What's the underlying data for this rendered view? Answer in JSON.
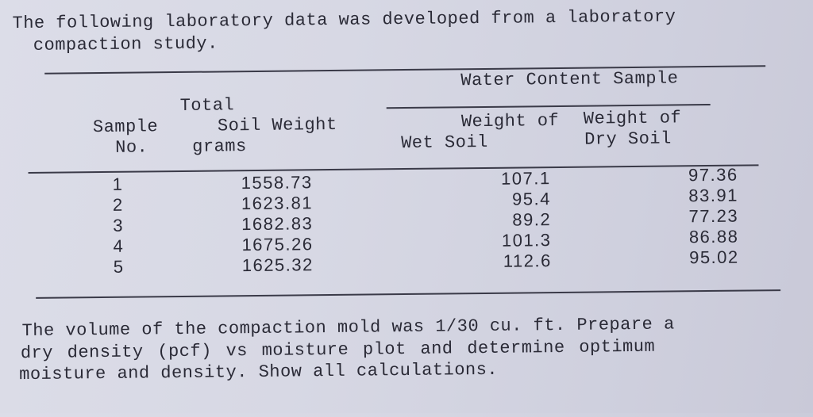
{
  "intro": {
    "line1": "The following laboratory data was developed from a laboratory",
    "line2": "compaction study."
  },
  "table": {
    "group_header": "Water Content Sample",
    "headers": {
      "sample": [
        "Sample",
        "No."
      ],
      "total": [
        "Total",
        "Soil Weight",
        "grams"
      ],
      "wet": [
        "Weight of",
        "Wet Soil"
      ],
      "dry": [
        "Weight of",
        "Dry Soil"
      ]
    },
    "rows": [
      {
        "sample": "1",
        "total": "1558.73",
        "wet": "107.1",
        "dry": "97.36"
      },
      {
        "sample": "2",
        "total": "1623.81",
        "wet": "95.4",
        "dry": "83.91"
      },
      {
        "sample": "3",
        "total": "1682.83",
        "wet": "89.2",
        "dry": "77.23"
      },
      {
        "sample": "4",
        "total": "1675.26",
        "wet": "101.3",
        "dry": "86.88"
      },
      {
        "sample": "5",
        "total": "1625.32",
        "wet": "112.6",
        "dry": "95.02"
      }
    ]
  },
  "footer": {
    "line1": "The volume of the compaction mold was 1/30 cu. ft. Prepare a",
    "line2": "dry density (pcf) vs moisture plot and determine optimum",
    "line3": "moisture and density. Show all calculations."
  }
}
